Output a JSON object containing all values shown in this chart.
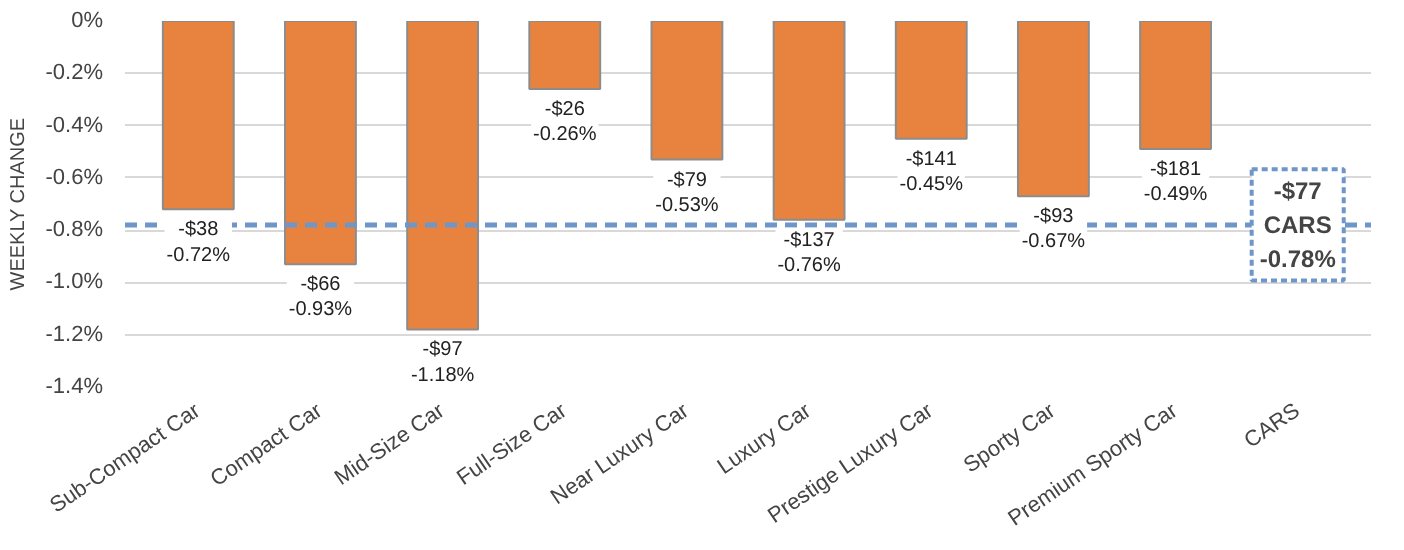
{
  "chart_data": {
    "type": "bar",
    "ylabel": "WEEKLY CHANGE",
    "categories": [
      "Sub-Compact Car",
      "Compact Car",
      "Mid-Size Car",
      "Full-Size Car",
      "Near Luxury Car",
      "Luxury Car",
      "Prestige Luxury Car",
      "Sporty Car",
      "Premium Sporty Car",
      "CARS"
    ],
    "values": [
      -0.72,
      -0.93,
      -1.18,
      -0.26,
      -0.53,
      -0.76,
      -0.45,
      -0.67,
      -0.49,
      null
    ],
    "value_labels": [
      "-$38\n-0.72%",
      "-$66\n-0.93%",
      "-$97\n-1.18%",
      "-$26\n-0.26%",
      "-$79\n-0.53%",
      "-$137\n-0.76%",
      "-$141\n-0.45%",
      "-$93\n-0.67%",
      "-$181\n-0.49%",
      null
    ],
    "color": "#e8833f",
    "ylim": [
      -1.4,
      0
    ],
    "yticks": [
      {
        "value": 0,
        "label": "0%"
      },
      {
        "value": -0.2,
        "label": "-0.2%"
      },
      {
        "value": -0.4,
        "label": "-0.4%"
      },
      {
        "value": -0.6,
        "label": "-0.6%"
      },
      {
        "value": -0.8,
        "label": "-0.8%"
      },
      {
        "value": -1.0,
        "label": "-1.0%"
      },
      {
        "value": -1.2,
        "label": "-1.2%"
      },
      {
        "value": -1.4,
        "label": "-1.4%"
      }
    ],
    "grid": "y",
    "ref_lines": [
      {
        "axis": "y",
        "value": -0.78,
        "label": "-$77\nCARS\n-0.78%",
        "color": "#6f96c8",
        "line_style": "dashed"
      }
    ]
  }
}
